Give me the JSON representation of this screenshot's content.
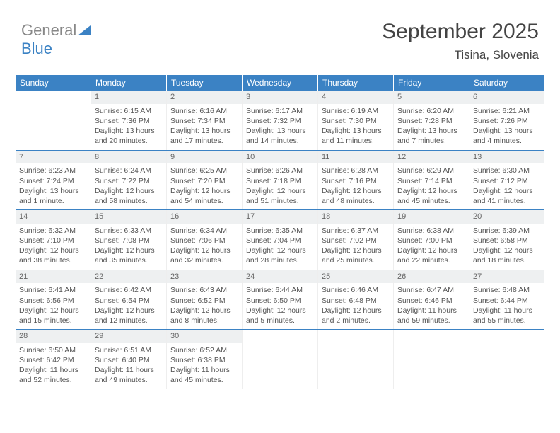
{
  "brand": {
    "word1": "General",
    "word2": "Blue"
  },
  "header": {
    "title": "September 2025",
    "location": "Tisina, Slovenia"
  },
  "dow": [
    "Sunday",
    "Monday",
    "Tuesday",
    "Wednesday",
    "Thursday",
    "Friday",
    "Saturday"
  ],
  "colors": {
    "accent": "#3b82c4",
    "dow_bg": "#3b82c4",
    "daynum_bg": "#eef0f1"
  },
  "weeks": [
    [
      null,
      {
        "n": "1",
        "sr": "Sunrise: 6:15 AM",
        "ss": "Sunset: 7:36 PM",
        "dl": "Daylight: 13 hours and 20 minutes."
      },
      {
        "n": "2",
        "sr": "Sunrise: 6:16 AM",
        "ss": "Sunset: 7:34 PM",
        "dl": "Daylight: 13 hours and 17 minutes."
      },
      {
        "n": "3",
        "sr": "Sunrise: 6:17 AM",
        "ss": "Sunset: 7:32 PM",
        "dl": "Daylight: 13 hours and 14 minutes."
      },
      {
        "n": "4",
        "sr": "Sunrise: 6:19 AM",
        "ss": "Sunset: 7:30 PM",
        "dl": "Daylight: 13 hours and 11 minutes."
      },
      {
        "n": "5",
        "sr": "Sunrise: 6:20 AM",
        "ss": "Sunset: 7:28 PM",
        "dl": "Daylight: 13 hours and 7 minutes."
      },
      {
        "n": "6",
        "sr": "Sunrise: 6:21 AM",
        "ss": "Sunset: 7:26 PM",
        "dl": "Daylight: 13 hours and 4 minutes."
      }
    ],
    [
      {
        "n": "7",
        "sr": "Sunrise: 6:23 AM",
        "ss": "Sunset: 7:24 PM",
        "dl": "Daylight: 13 hours and 1 minute."
      },
      {
        "n": "8",
        "sr": "Sunrise: 6:24 AM",
        "ss": "Sunset: 7:22 PM",
        "dl": "Daylight: 12 hours and 58 minutes."
      },
      {
        "n": "9",
        "sr": "Sunrise: 6:25 AM",
        "ss": "Sunset: 7:20 PM",
        "dl": "Daylight: 12 hours and 54 minutes."
      },
      {
        "n": "10",
        "sr": "Sunrise: 6:26 AM",
        "ss": "Sunset: 7:18 PM",
        "dl": "Daylight: 12 hours and 51 minutes."
      },
      {
        "n": "11",
        "sr": "Sunrise: 6:28 AM",
        "ss": "Sunset: 7:16 PM",
        "dl": "Daylight: 12 hours and 48 minutes."
      },
      {
        "n": "12",
        "sr": "Sunrise: 6:29 AM",
        "ss": "Sunset: 7:14 PM",
        "dl": "Daylight: 12 hours and 45 minutes."
      },
      {
        "n": "13",
        "sr": "Sunrise: 6:30 AM",
        "ss": "Sunset: 7:12 PM",
        "dl": "Daylight: 12 hours and 41 minutes."
      }
    ],
    [
      {
        "n": "14",
        "sr": "Sunrise: 6:32 AM",
        "ss": "Sunset: 7:10 PM",
        "dl": "Daylight: 12 hours and 38 minutes."
      },
      {
        "n": "15",
        "sr": "Sunrise: 6:33 AM",
        "ss": "Sunset: 7:08 PM",
        "dl": "Daylight: 12 hours and 35 minutes."
      },
      {
        "n": "16",
        "sr": "Sunrise: 6:34 AM",
        "ss": "Sunset: 7:06 PM",
        "dl": "Daylight: 12 hours and 32 minutes."
      },
      {
        "n": "17",
        "sr": "Sunrise: 6:35 AM",
        "ss": "Sunset: 7:04 PM",
        "dl": "Daylight: 12 hours and 28 minutes."
      },
      {
        "n": "18",
        "sr": "Sunrise: 6:37 AM",
        "ss": "Sunset: 7:02 PM",
        "dl": "Daylight: 12 hours and 25 minutes."
      },
      {
        "n": "19",
        "sr": "Sunrise: 6:38 AM",
        "ss": "Sunset: 7:00 PM",
        "dl": "Daylight: 12 hours and 22 minutes."
      },
      {
        "n": "20",
        "sr": "Sunrise: 6:39 AM",
        "ss": "Sunset: 6:58 PM",
        "dl": "Daylight: 12 hours and 18 minutes."
      }
    ],
    [
      {
        "n": "21",
        "sr": "Sunrise: 6:41 AM",
        "ss": "Sunset: 6:56 PM",
        "dl": "Daylight: 12 hours and 15 minutes."
      },
      {
        "n": "22",
        "sr": "Sunrise: 6:42 AM",
        "ss": "Sunset: 6:54 PM",
        "dl": "Daylight: 12 hours and 12 minutes."
      },
      {
        "n": "23",
        "sr": "Sunrise: 6:43 AM",
        "ss": "Sunset: 6:52 PM",
        "dl": "Daylight: 12 hours and 8 minutes."
      },
      {
        "n": "24",
        "sr": "Sunrise: 6:44 AM",
        "ss": "Sunset: 6:50 PM",
        "dl": "Daylight: 12 hours and 5 minutes."
      },
      {
        "n": "25",
        "sr": "Sunrise: 6:46 AM",
        "ss": "Sunset: 6:48 PM",
        "dl": "Daylight: 12 hours and 2 minutes."
      },
      {
        "n": "26",
        "sr": "Sunrise: 6:47 AM",
        "ss": "Sunset: 6:46 PM",
        "dl": "Daylight: 11 hours and 59 minutes."
      },
      {
        "n": "27",
        "sr": "Sunrise: 6:48 AM",
        "ss": "Sunset: 6:44 PM",
        "dl": "Daylight: 11 hours and 55 minutes."
      }
    ],
    [
      {
        "n": "28",
        "sr": "Sunrise: 6:50 AM",
        "ss": "Sunset: 6:42 PM",
        "dl": "Daylight: 11 hours and 52 minutes."
      },
      {
        "n": "29",
        "sr": "Sunrise: 6:51 AM",
        "ss": "Sunset: 6:40 PM",
        "dl": "Daylight: 11 hours and 49 minutes."
      },
      {
        "n": "30",
        "sr": "Sunrise: 6:52 AM",
        "ss": "Sunset: 6:38 PM",
        "dl": "Daylight: 11 hours and 45 minutes."
      },
      null,
      null,
      null,
      null
    ]
  ]
}
